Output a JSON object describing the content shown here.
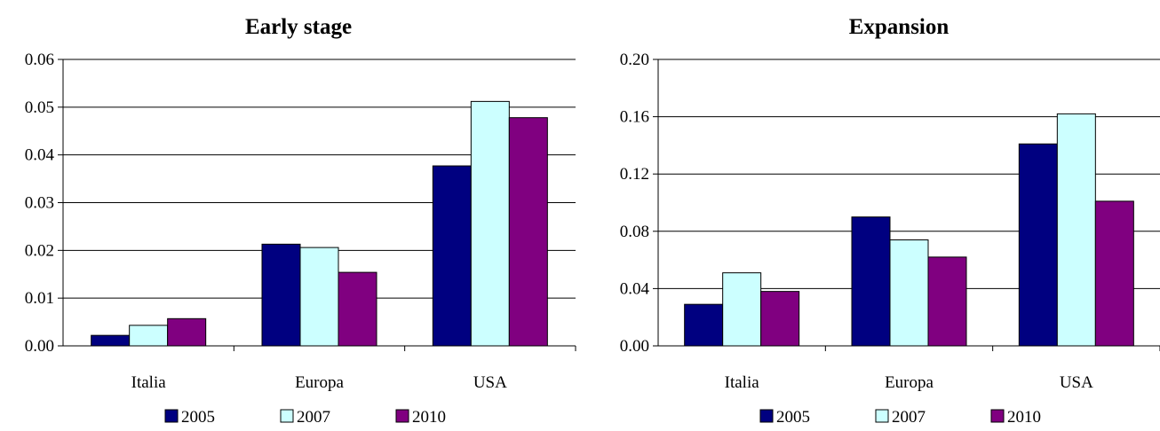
{
  "chart_data": [
    {
      "type": "bar",
      "title": "Early stage",
      "categories": [
        "Italia",
        "Europa",
        "USA"
      ],
      "series": [
        {
          "name": "2005",
          "values": [
            0.0022,
            0.0213,
            0.0377
          ]
        },
        {
          "name": "2007",
          "values": [
            0.0043,
            0.0206,
            0.0512
          ]
        },
        {
          "name": "2010",
          "values": [
            0.0057,
            0.0154,
            0.0478
          ]
        }
      ],
      "ylim": [
        0,
        0.06
      ],
      "yticks": [
        "0.00",
        "0.01",
        "0.02",
        "0.03",
        "0.04",
        "0.05",
        "0.06"
      ],
      "grid": true,
      "legend": "bottom"
    },
    {
      "type": "bar",
      "title": "Expansion",
      "categories": [
        "Italia",
        "Europa",
        "USA"
      ],
      "series": [
        {
          "name": "2005",
          "values": [
            0.029,
            0.09,
            0.141
          ]
        },
        {
          "name": "2007",
          "values": [
            0.051,
            0.074,
            0.162
          ]
        },
        {
          "name": "2010",
          "values": [
            0.038,
            0.062,
            0.101
          ]
        }
      ],
      "ylim": [
        0,
        0.2
      ],
      "yticks": [
        "0.00",
        "0.04",
        "0.08",
        "0.12",
        "0.16",
        "0.20"
      ],
      "grid": true,
      "legend": "bottom"
    }
  ],
  "colors": {
    "series": [
      "#000080",
      "#CCFFFF",
      "#800080"
    ],
    "stroke": "#000000"
  }
}
